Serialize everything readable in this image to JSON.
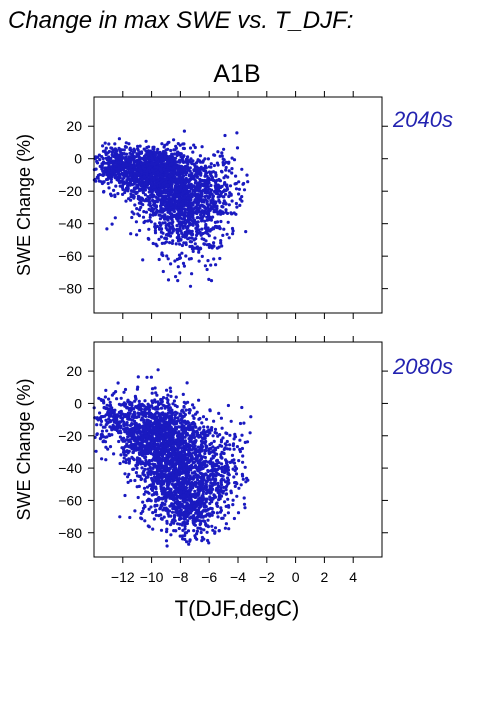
{
  "figure": {
    "title": "Change in max SWE vs. T_DJF:",
    "scenario": "A1B",
    "xlabel": "T(DJF,degC)",
    "point_color": "#1a1ac0",
    "label_color": "#2323b0"
  },
  "chart_data": [
    {
      "type": "scatter",
      "panel_label": "2040s",
      "ylabel": "SWE Change (%)",
      "xlim": [
        -14,
        6
      ],
      "ylim": [
        -95,
        38
      ],
      "x_ticks": [
        -12,
        -10,
        -8,
        -6,
        -4,
        -2,
        0,
        2,
        4
      ],
      "y_ticks": [
        20,
        0,
        -20,
        -40,
        -60,
        -80
      ],
      "clusters": [
        {
          "cx": -10.2,
          "cy": -7,
          "sx": 1.5,
          "sy": 7,
          "n": 1000
        },
        {
          "cx": -8.6,
          "cy": -20,
          "sx": 1.4,
          "sy": 11,
          "n": 800
        },
        {
          "cx": -7.4,
          "cy": -38,
          "sx": 1.2,
          "sy": 14,
          "n": 420
        },
        {
          "cx": -5.8,
          "cy": -22,
          "sx": 1.3,
          "sy": 13,
          "n": 320
        },
        {
          "cx": -12.5,
          "cy": -3,
          "sx": 0.9,
          "sy": 6,
          "n": 180
        }
      ],
      "x_range_data": [
        -14,
        -3.3
      ],
      "y_range_data": [
        -85,
        19
      ]
    },
    {
      "type": "scatter",
      "panel_label": "2080s",
      "ylabel": "SWE Change (%)",
      "xlim": [
        -14,
        6
      ],
      "ylim": [
        -95,
        38
      ],
      "x_ticks": [
        -12,
        -10,
        -8,
        -6,
        -4,
        -2,
        0,
        2,
        4
      ],
      "y_ticks": [
        20,
        0,
        -20,
        -40,
        -60,
        -80
      ],
      "clusters": [
        {
          "cx": -9.8,
          "cy": -18,
          "sx": 1.5,
          "sy": 11,
          "n": 950
        },
        {
          "cx": -8.4,
          "cy": -40,
          "sx": 1.3,
          "sy": 15,
          "n": 950
        },
        {
          "cx": -7.2,
          "cy": -60,
          "sx": 1.2,
          "sy": 12,
          "n": 500
        },
        {
          "cx": -5.5,
          "cy": -40,
          "sx": 1.3,
          "sy": 15,
          "n": 320
        },
        {
          "cx": -12.4,
          "cy": -10,
          "sx": 0.9,
          "sy": 8,
          "n": 180
        }
      ],
      "x_range_data": [
        -14,
        -3.1
      ],
      "y_range_data": [
        -92,
        21
      ]
    }
  ]
}
